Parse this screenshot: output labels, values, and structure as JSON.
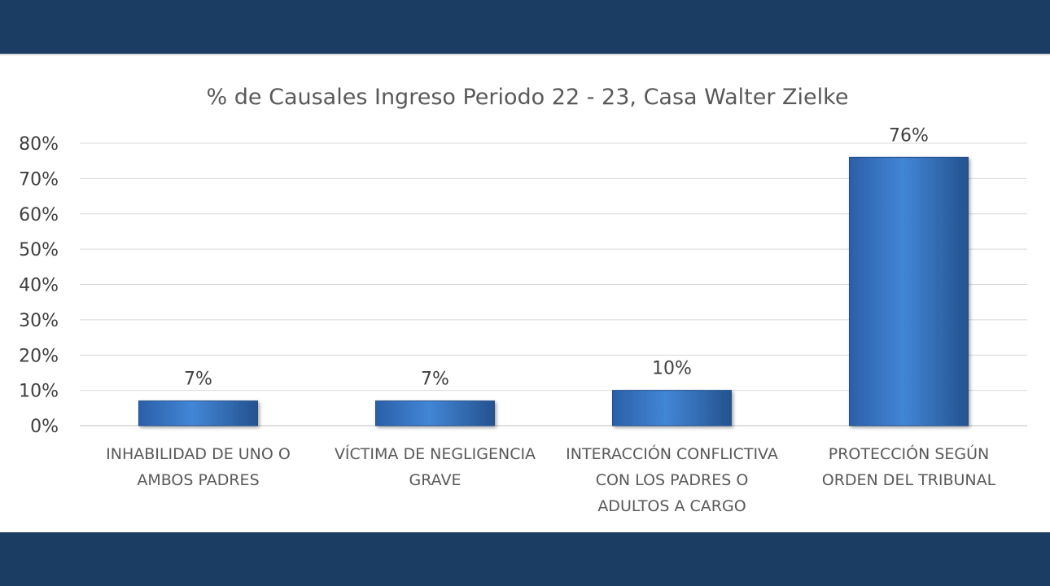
{
  "chart_data": {
    "type": "bar",
    "title": "% de Causales Ingreso Periodo 22 - 23, Casa Walter Zielke",
    "categories": [
      "INHABILIDAD DE UNO O AMBOS PADRES",
      "VÍCTIMA DE NEGLIGENCIA GRAVE",
      "INTERACCIÓN CONFLICTIVA CON LOS PADRES O ADULTOS A CARGO",
      "PROTECCIÓN SEGÚN ORDEN DEL TRIBUNAL"
    ],
    "category_lines": [
      [
        "INHABILIDAD DE UNO O",
        "AMBOS PADRES"
      ],
      [
        "VÍCTIMA DE NEGLIGENCIA",
        "GRAVE"
      ],
      [
        "INTERACCIÓN CONFLICTIVA",
        "CON LOS PADRES O",
        "ADULTOS A CARGO"
      ],
      [
        "PROTECCIÓN SEGÚN",
        "ORDEN DEL TRIBUNAL"
      ]
    ],
    "values": [
      7,
      7,
      10,
      76
    ],
    "data_labels": [
      "7%",
      "7%",
      "10%",
      "76%"
    ],
    "ylim": [
      0,
      80
    ],
    "yticks": [
      0,
      10,
      20,
      30,
      40,
      50,
      60,
      70,
      80
    ],
    "ytick_labels": [
      "0%",
      "10%",
      "20%",
      "30%",
      "40%",
      "50%",
      "60%",
      "70%",
      "80%"
    ],
    "xlabel": "",
    "ylabel": "",
    "grid": true,
    "legend": "none",
    "colors": {
      "bar": "#3a78c9",
      "bar_dark": "#23508f",
      "grid": "#d9d9d9",
      "band": "#1b3d63"
    }
  }
}
